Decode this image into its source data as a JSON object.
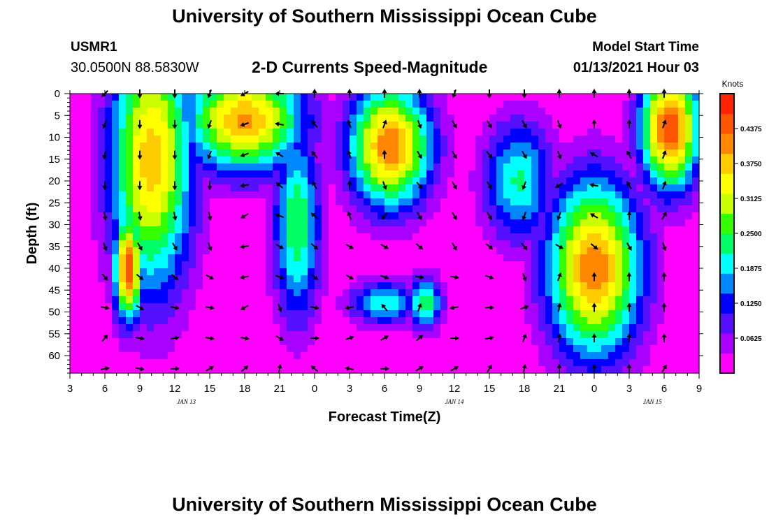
{
  "header": {
    "title": "University of Southern Mississippi Ocean Cube",
    "station_id": "USMR1",
    "station_coords": "30.0500N 88.5830W",
    "chart_title": "2-D Currents Speed-Magnitude",
    "model_start_label": "Model Start Time",
    "model_start_time": "01/13/2021 Hour 03"
  },
  "footer": {
    "title": "University of Southern Mississippi Ocean Cube"
  },
  "colors": {
    "scale": [
      "#ff00ff",
      "#aa00ff",
      "#5511ff",
      "#0000ff",
      "#0088ff",
      "#00ffff",
      "#00ff66",
      "#33ff00",
      "#ccff00",
      "#ffff00",
      "#ffcc00",
      "#ff8800",
      "#ff5500",
      "#ff2200"
    ],
    "arrow": "#000000"
  },
  "chart_data": {
    "type": "heatmap",
    "title": "2-D Currents Speed-Magnitude",
    "xlabel": "Forecast Time(Z)",
    "ylabel": "Depth (ft)",
    "x_range_hours": [
      0,
      54
    ],
    "ylim": [
      0,
      64
    ],
    "x_ticks": [
      "3",
      "6",
      "9",
      "12",
      "15",
      "18",
      "21",
      "0",
      "3",
      "6",
      "9",
      "12",
      "15",
      "18",
      "21",
      "0",
      "3",
      "6",
      "9"
    ],
    "y_ticks": [
      0,
      5,
      10,
      15,
      20,
      25,
      30,
      35,
      40,
      45,
      50,
      55,
      60
    ],
    "date_labels": [
      {
        "text": "JAN 13",
        "hour": 10
      },
      {
        "text": "JAN 14",
        "hour": 33
      },
      {
        "text": "JAN 15",
        "hour": 50
      }
    ],
    "colorbar": {
      "label": "Knots",
      "range": [
        0.0,
        0.5
      ],
      "ticks": [
        "0.4375",
        "0.3750",
        "0.3125",
        "0.2500",
        "0.1875",
        "0.1250",
        "0.0625"
      ]
    },
    "speed_hotspots": [
      {
        "hour": 5,
        "depth": 40,
        "speed": 0.45,
        "hw": 1.2,
        "hd": 12
      },
      {
        "hour": 7,
        "depth": 15,
        "speed": 0.38,
        "hw": 3.5,
        "hd": 30
      },
      {
        "hour": 15,
        "depth": 6,
        "speed": 0.4,
        "hw": 5,
        "hd": 12
      },
      {
        "hour": 19.5,
        "depth": 30,
        "speed": 0.25,
        "hw": 2,
        "hd": 22
      },
      {
        "hour": 27.5,
        "depth": 12,
        "speed": 0.42,
        "hw": 3.5,
        "hd": 14
      },
      {
        "hour": 30.5,
        "depth": 48,
        "speed": 0.25,
        "hw": 1.5,
        "hd": 6
      },
      {
        "hour": 27,
        "depth": 48,
        "speed": 0.22,
        "hw": 3,
        "hd": 5
      },
      {
        "hour": 45,
        "depth": 40,
        "speed": 0.42,
        "hw": 4,
        "hd": 20
      },
      {
        "hour": 51.5,
        "depth": 8,
        "speed": 0.46,
        "hw": 2.5,
        "hd": 14
      },
      {
        "hour": 38.5,
        "depth": 20,
        "speed": 0.22,
        "hw": 3,
        "hd": 14
      }
    ],
    "arrow_rows_ft": [
      0,
      7,
      14,
      21,
      28,
      35,
      42,
      49,
      56,
      63
    ],
    "arrow_cols_hours": [
      3,
      6,
      9,
      12,
      15,
      18,
      21,
      24,
      27,
      30,
      33,
      36,
      39,
      42,
      45,
      48,
      51
    ],
    "arrow_direction_deg": [
      [
        225,
        180,
        180,
        200,
        240,
        270,
        0,
        0,
        0,
        0,
        200,
        180,
        180,
        0,
        0,
        0,
        0
      ],
      [
        200,
        180,
        180,
        200,
        250,
        280,
        320,
        340,
        20,
        160,
        150,
        150,
        150,
        160,
        0,
        0,
        20
      ],
      [
        190,
        180,
        180,
        200,
        250,
        300,
        320,
        340,
        0,
        150,
        150,
        140,
        150,
        160,
        300,
        330,
        20
      ],
      [
        180,
        180,
        180,
        180,
        260,
        310,
        330,
        0,
        160,
        140,
        150,
        150,
        200,
        240,
        280,
        330,
        20
      ],
      [
        170,
        170,
        170,
        170,
        240,
        290,
        310,
        340,
        220,
        150,
        150,
        150,
        200,
        200,
        300,
        0,
        30
      ],
      [
        160,
        150,
        150,
        160,
        260,
        120,
        130,
        120,
        120,
        130,
        150,
        130,
        140,
        120,
        130,
        150,
        160
      ],
      [
        140,
        130,
        130,
        120,
        260,
        110,
        130,
        120,
        110,
        100,
        100,
        110,
        160,
        20,
        0,
        0,
        0
      ],
      [
        100,
        120,
        100,
        100,
        240,
        160,
        100,
        260,
        320,
        20,
        260,
        90,
        70,
        10,
        0,
        0,
        0
      ],
      [
        40,
        100,
        80,
        100,
        100,
        120,
        90,
        70,
        60,
        50,
        90,
        80,
        20,
        10,
        0,
        0,
        0
      ],
      [
        80,
        100,
        90,
        60,
        50,
        10,
        310,
        280,
        90,
        60,
        60,
        30,
        10,
        0,
        0,
        0,
        30
      ]
    ]
  }
}
